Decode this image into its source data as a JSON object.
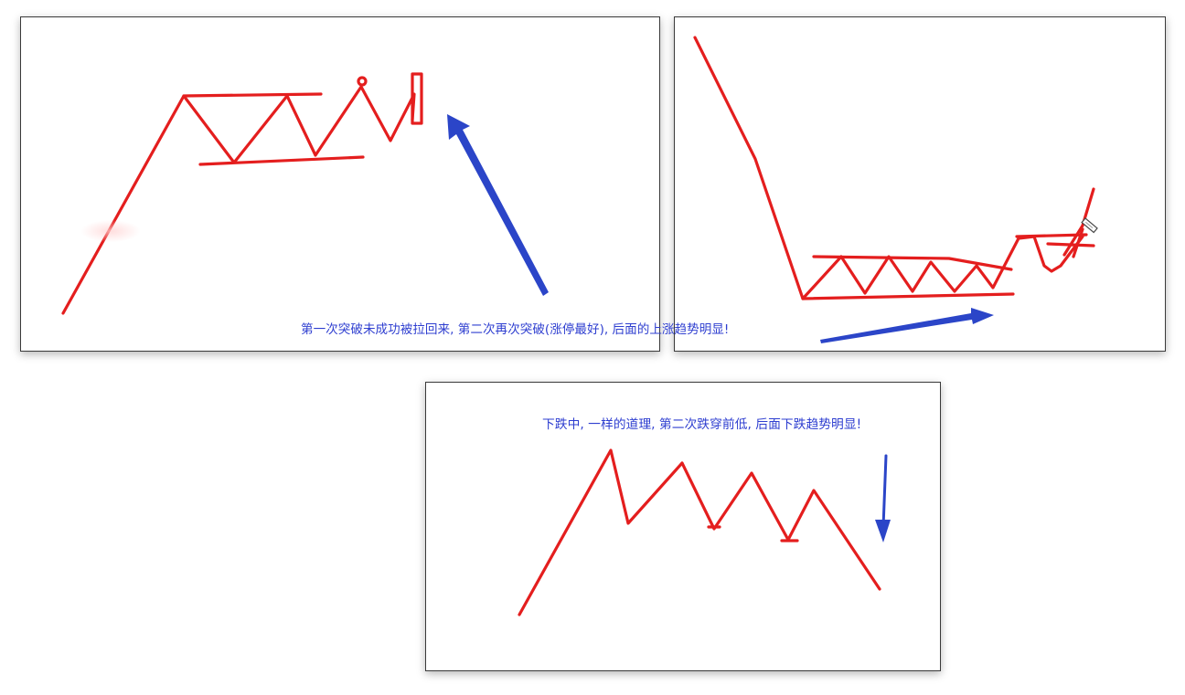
{
  "colors": {
    "pattern_line": "#e41e1e",
    "arrow": "#2b45c8",
    "caption_text": "#2f3fd0",
    "panel_border": "#3a3a3a"
  },
  "captions": {
    "top": "第一次突破未成功被拉回来, 第二次再次突破(涨停最好), 后面的上涨趋势明显!",
    "bottom": "下跌中, 一样的道理, 第二次跌穿前低, 后面下跌趋势明显!"
  },
  "icons": {
    "pointer_arrow": "arrow-icon",
    "pen_cursor": "pen-icon"
  }
}
